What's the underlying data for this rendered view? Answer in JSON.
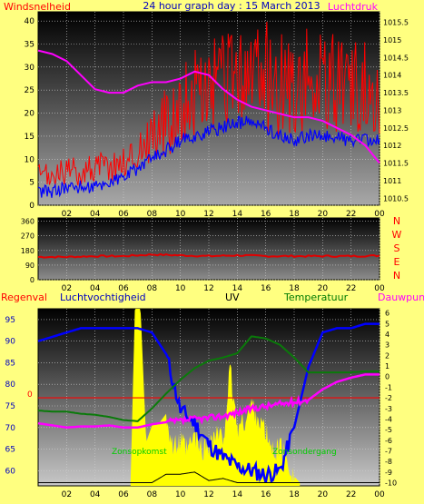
{
  "header": {
    "left_label": "Windsnelheid",
    "title": "24 hour graph day : 15 March 2013",
    "right_label": "Luchtdruk"
  },
  "x_ticks": [
    "02",
    "04",
    "06",
    "08",
    "10",
    "12",
    "14",
    "16",
    "18",
    "20",
    "22",
    "00"
  ],
  "panel1": {
    "y_left_ticks": [
      "0",
      "5",
      "10",
      "15",
      "20",
      "25",
      "30",
      "35",
      "40"
    ],
    "y_right_ticks": [
      "1010.5",
      "1011",
      "1011.5",
      "1012",
      "1012.5",
      "1013",
      "1013.5",
      "1014",
      "1014.5",
      "1015",
      "1015.5"
    ]
  },
  "panel2": {
    "y_ticks": [
      "0",
      "90",
      "180",
      "270",
      "360"
    ],
    "compass_letters": [
      "N",
      "W",
      "S",
      "E",
      "N"
    ]
  },
  "panel3": {
    "labels": {
      "rain": "Regenval",
      "humidity": "Luchtvochtigheid",
      "uv": "UV",
      "temperature": "Temperatuur",
      "dewpoint": "Dauwpunt"
    },
    "y_left_ticks": [
      "60",
      "65",
      "70",
      "75",
      "80",
      "85",
      "90",
      "95"
    ],
    "rain_zero_label": "0",
    "y_right_ticks": [
      "-10",
      "-9",
      "-8",
      "-7",
      "-6",
      "-5",
      "-4",
      "-3",
      "-2",
      "-1",
      "0",
      "1",
      "2",
      "3",
      "4",
      "5",
      "6"
    ],
    "sunrise_label": "Zonsopkomst",
    "sunset_label": "Zonsondergang"
  },
  "colors": {
    "wind_gust": "#ff0000",
    "wind_avg": "#0000ff",
    "pressure": "#ff00ff",
    "direction": "#e00000",
    "humidity": "#0000ff",
    "temperature": "#0a7a0a",
    "dewpoint": "#ff00ff",
    "uv": "#ffff00",
    "solar": "#000000",
    "rain_line": "#ff0000",
    "sun_text": "#00cc00"
  },
  "chart_data": [
    {
      "type": "line",
      "xlabel": "",
      "x_hours": [
        0,
        1,
        2,
        3,
        4,
        5,
        6,
        7,
        8,
        9,
        10,
        11,
        12,
        13,
        14,
        15,
        16,
        17,
        18,
        19,
        20,
        21,
        22,
        23,
        24
      ],
      "ylim_left": [
        0,
        42
      ],
      "ylim_right": [
        1010.3,
        1015.8
      ],
      "series": [
        {
          "name": "Windsnelheid",
          "axis": "left",
          "style": "gust",
          "values": [
            6,
            6,
            7,
            7,
            8,
            8,
            9,
            11,
            15,
            17,
            21,
            23,
            24,
            25,
            26,
            27,
            27,
            25,
            24,
            26,
            25,
            25,
            24,
            24,
            24
          ]
        },
        {
          "name": "",
          "axis": "left",
          "style": "average",
          "values": [
            3,
            3,
            4,
            4,
            4,
            5,
            6,
            8,
            10,
            12,
            14,
            15,
            16,
            17,
            18,
            18,
            17,
            15,
            14,
            15,
            15,
            15,
            14,
            14,
            14
          ]
        },
        {
          "name": "Luchtdruk",
          "axis": "right",
          "values": [
            1014.7,
            1014.6,
            1014.4,
            1014.0,
            1013.6,
            1013.5,
            1013.5,
            1013.7,
            1013.8,
            1013.8,
            1013.9,
            1014.1,
            1014.0,
            1013.6,
            1013.3,
            1013.1,
            1013.0,
            1012.9,
            1012.8,
            1012.8,
            1012.7,
            1012.5,
            1012.3,
            1012.0,
            1011.5
          ]
        }
      ]
    },
    {
      "type": "line",
      "x_hours": [
        0,
        2,
        4,
        6,
        8,
        10,
        12,
        14,
        16,
        18,
        20,
        22,
        24
      ],
      "ylim": [
        0,
        380
      ],
      "series": [
        {
          "name": "",
          "values": [
            140,
            140,
            145,
            145,
            155,
            150,
            145,
            150,
            145,
            145,
            145,
            145,
            148
          ]
        }
      ]
    },
    {
      "type": "line",
      "x_hours": [
        0,
        1,
        2,
        3,
        4,
        5,
        6,
        7,
        8,
        9,
        10,
        11,
        12,
        13,
        14,
        15,
        16,
        17,
        18,
        19,
        20,
        21,
        22,
        23,
        24
      ],
      "ylim_left": [
        56.5,
        97.5
      ],
      "ylim_right": [
        -10.3,
        6.4
      ],
      "series": [
        {
          "name": "Luchtvochtigheid",
          "axis": "left",
          "values": [
            90,
            91,
            92,
            93,
            93,
            93,
            93,
            93,
            92,
            87,
            74,
            71,
            66,
            63,
            61,
            60,
            59,
            60,
            70,
            84,
            92,
            93,
            93,
            94,
            94
          ]
        },
        {
          "name": "Temperatuur",
          "axis": "right",
          "values": [
            -3.2,
            -3.3,
            -3.3,
            -3.5,
            -3.6,
            -3.8,
            -4.1,
            -4.2,
            -3.0,
            -1.6,
            -0.3,
            0.8,
            1.5,
            1.8,
            2.2,
            3.8,
            3.6,
            3.0,
            1.8,
            0.4,
            0.4,
            0.4,
            0.4,
            0.5,
            0.5
          ]
        },
        {
          "name": "Dauwpunt",
          "axis": "right",
          "values": [
            -4.4,
            -4.6,
            -4.8,
            -4.7,
            -4.7,
            -4.6,
            -4.8,
            -4.8,
            -4.5,
            -4.3,
            -4.2,
            -4.0,
            -3.9,
            -3.7,
            -3.4,
            -3.0,
            -2.8,
            -2.6,
            -2.4,
            -2.2,
            -1.2,
            -0.5,
            -0.1,
            0.2,
            0.2
          ]
        },
        {
          "name": "",
          "axis": "right",
          "values": [
            -10.0,
            -10.0,
            -10.0,
            -10.0,
            -10.0,
            -10.0,
            -10.0,
            -10.0,
            -10.0,
            -9.2,
            -9.2,
            -9.0,
            -9.8,
            -9.6,
            -10.0,
            -10.0,
            -10.0,
            -10.0,
            -10.0,
            -10.0,
            -10.0,
            -10.0,
            -10.0,
            -10.0,
            -10.0
          ]
        }
      ],
      "uv_area": {
        "name": "UV",
        "x_hours": [
          6.5,
          6.8,
          7.2,
          7.6,
          8.0,
          8.5,
          9.0,
          9.5,
          10.0,
          10.5,
          11.0,
          11.5,
          12.0,
          12.5,
          13.0,
          13.5,
          14.0,
          14.5,
          15.0,
          15.5,
          16.0,
          16.5,
          17.0,
          17.5,
          18.0,
          18.4
        ],
        "values_right_axis": [
          -10,
          6.4,
          6.4,
          -6.2,
          -4.6,
          -4.4,
          -3.5,
          -6.8,
          -6.2,
          -7.0,
          -5.6,
          -7.0,
          -6.3,
          -5.4,
          -6.0,
          0.6,
          -4.8,
          -4.2,
          -2.5,
          -3.9,
          -5.3,
          -7.1,
          -6.6,
          -7.8,
          -9.4,
          -10
        ]
      },
      "rain_value": 0
    }
  ]
}
